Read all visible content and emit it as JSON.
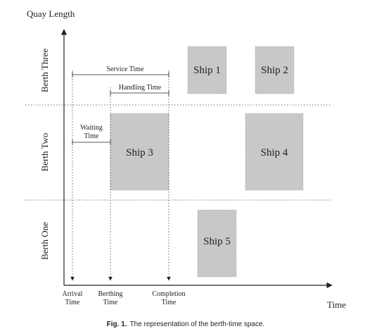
{
  "axes": {
    "y_label": "Quay Length",
    "x_label": "Time"
  },
  "berths": [
    {
      "label": "Berth Three"
    },
    {
      "label": "Berth Two"
    },
    {
      "label": "Berth One"
    }
  ],
  "ships": [
    {
      "label": "Ship 1"
    },
    {
      "label": "Ship 2"
    },
    {
      "label": "Ship 3"
    },
    {
      "label": "Ship 4"
    },
    {
      "label": "Ship 5"
    }
  ],
  "annotations": {
    "service_time": "Service Time",
    "handling_time": "Handling Time",
    "waiting_time_line1": "Waiting",
    "waiting_time_line2": "Time"
  },
  "time_markers": [
    {
      "line1": "Arrival",
      "line2": "Time"
    },
    {
      "line1": "Berthing",
      "line2": "Time"
    },
    {
      "line1": "Completion",
      "line2": "Time"
    }
  ],
  "caption": {
    "prefix": "Fig. 1.",
    "text": "The representation of the berth-time space."
  },
  "colors": {
    "ship_fill": "#c8c8c8",
    "line": "#222222"
  }
}
